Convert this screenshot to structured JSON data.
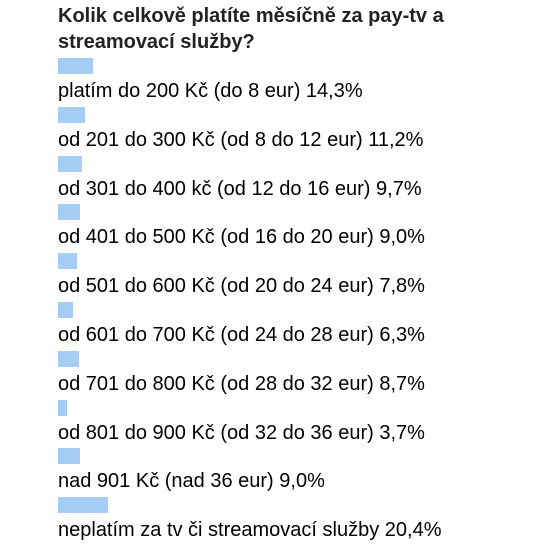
{
  "poll": {
    "title": "Kolik celkově platíte měsíčně za pay-tv a streamovací služby?"
  },
  "chart_data": {
    "type": "bar",
    "title": "Kolik celkově platíte měsíčně za pay-tv a streamovací služby?",
    "categories": [
      "platím do 200 Kč (do 8 eur)",
      "od 201 do 300 Kč (od 8 do 12 eur)",
      "od 301 do 400 kč (od 12 do 16 eur)",
      "od 401 do 500 Kč (od 16 do 20 eur)",
      "od 501 do 600 Kč (od 20 do 24 eur)",
      "od 601 do 700 Kč (od 24 do 28 eur)",
      "od 701 do 800 Kč (od 28 do 32 eur)",
      "od 801 do 900 Kč (od 32 do 36 eur)",
      "nad 901 Kč (nad 36 eur)",
      "neplatím za tv či streamovací služby"
    ],
    "values": [
      14.3,
      11.2,
      9.7,
      9.0,
      7.8,
      6.3,
      8.7,
      3.7,
      9.0,
      20.4
    ],
    "value_labels": [
      "14,3%",
      "11,2%",
      "9,7%",
      "9,0%",
      "7,8%",
      "6,3%",
      "8,7%",
      "3,7%",
      "9,0%",
      "20,4%"
    ],
    "bar_color": "#a6cdf5"
  }
}
